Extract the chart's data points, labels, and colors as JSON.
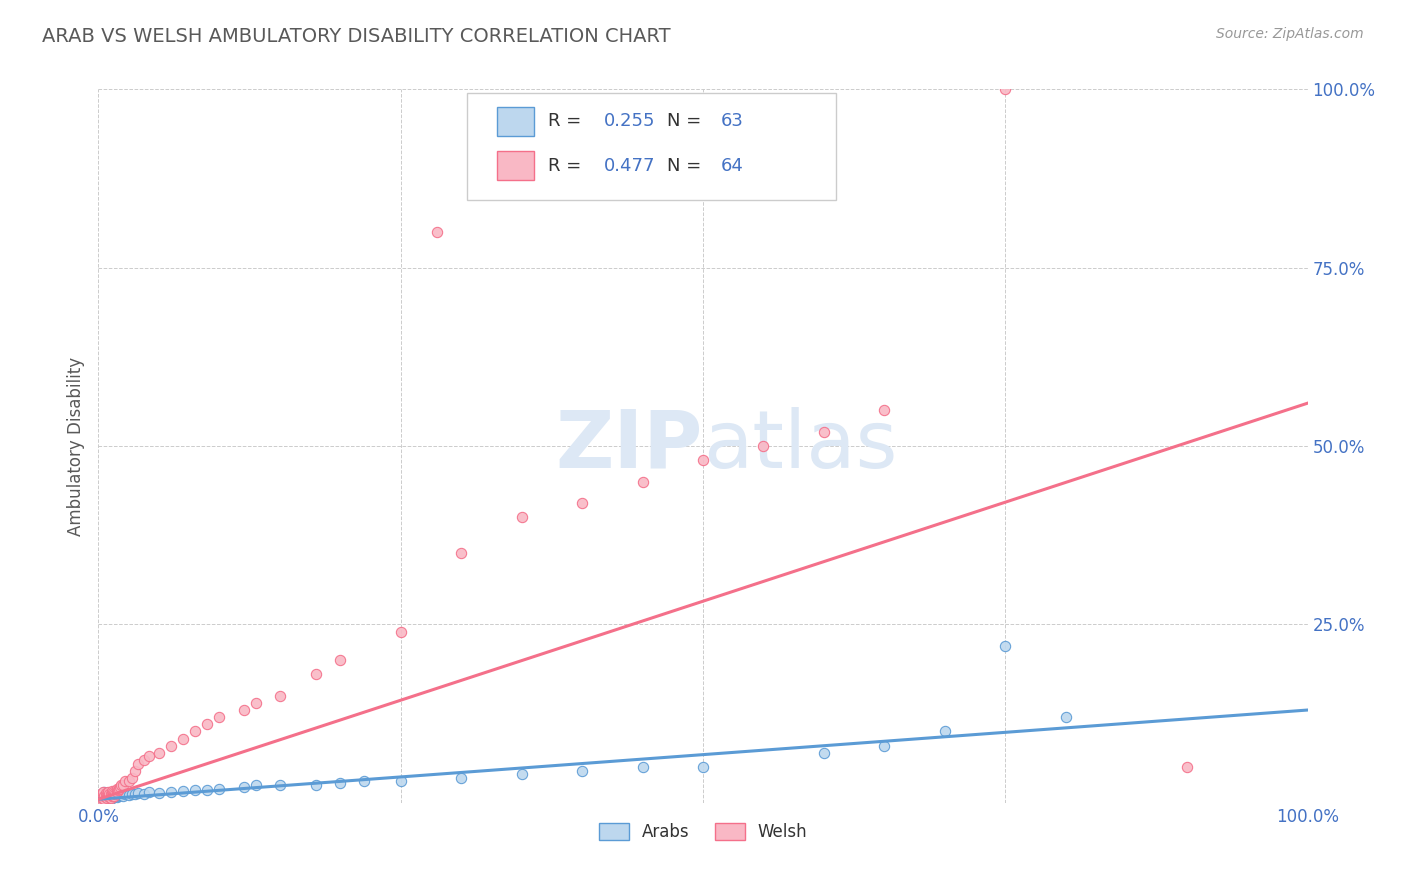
{
  "title": "ARAB VS WELSH AMBULATORY DISABILITY CORRELATION CHART",
  "source": "Source: ZipAtlas.com",
  "ylabel": "Ambulatory Disability",
  "xlim": [
    0.0,
    1.0
  ],
  "ylim": [
    0.0,
    1.0
  ],
  "xtick_vals": [
    0.0,
    0.25,
    0.5,
    0.75,
    1.0
  ],
  "xtick_labels": [
    "0.0%",
    "",
    "",
    "",
    "100.0%"
  ],
  "ytick_vals": [
    0.0,
    0.25,
    0.5,
    0.75,
    1.0
  ],
  "ytick_labels": [
    "",
    "25.0%",
    "50.0%",
    "75.0%",
    "100.0%"
  ],
  "arab_color": "#5b9bd5",
  "arab_color_fill": "#bdd7ee",
  "welsh_color": "#f4708a",
  "welsh_color_fill": "#f9b8c5",
  "arab_R": 0.255,
  "arab_N": 63,
  "welsh_R": 0.477,
  "welsh_N": 64,
  "legend_arab_label": "Arabs",
  "legend_welsh_label": "Welsh",
  "title_color": "#595959",
  "axis_label_color": "#595959",
  "tick_color": "#4472c4",
  "watermark_color": "#dde8f5",
  "background_color": "#ffffff",
  "grid_color": "#cccccc",
  "arab_x": [
    0.001,
    0.001,
    0.002,
    0.002,
    0.003,
    0.003,
    0.004,
    0.004,
    0.005,
    0.005,
    0.005,
    0.006,
    0.006,
    0.007,
    0.007,
    0.008,
    0.008,
    0.009,
    0.009,
    0.01,
    0.01,
    0.011,
    0.011,
    0.012,
    0.012,
    0.013,
    0.014,
    0.015,
    0.015,
    0.016,
    0.017,
    0.018,
    0.02,
    0.022,
    0.025,
    0.028,
    0.03,
    0.033,
    0.038,
    0.042,
    0.05,
    0.06,
    0.07,
    0.08,
    0.09,
    0.1,
    0.12,
    0.13,
    0.15,
    0.18,
    0.2,
    0.22,
    0.25,
    0.3,
    0.35,
    0.4,
    0.45,
    0.5,
    0.6,
    0.65,
    0.7,
    0.75,
    0.8
  ],
  "arab_y": [
    0.005,
    0.01,
    0.008,
    0.012,
    0.006,
    0.01,
    0.008,
    0.012,
    0.005,
    0.009,
    0.015,
    0.007,
    0.011,
    0.006,
    0.012,
    0.008,
    0.013,
    0.007,
    0.01,
    0.006,
    0.012,
    0.009,
    0.014,
    0.008,
    0.011,
    0.01,
    0.012,
    0.008,
    0.015,
    0.01,
    0.011,
    0.013,
    0.01,
    0.012,
    0.011,
    0.013,
    0.012,
    0.014,
    0.013,
    0.015,
    0.014,
    0.015,
    0.016,
    0.018,
    0.018,
    0.02,
    0.022,
    0.025,
    0.025,
    0.025,
    0.028,
    0.03,
    0.03,
    0.035,
    0.04,
    0.045,
    0.05,
    0.05,
    0.07,
    0.08,
    0.1,
    0.22,
    0.12
  ],
  "welsh_x": [
    0.001,
    0.001,
    0.002,
    0.002,
    0.003,
    0.003,
    0.004,
    0.004,
    0.005,
    0.005,
    0.006,
    0.006,
    0.007,
    0.007,
    0.008,
    0.008,
    0.009,
    0.009,
    0.01,
    0.01,
    0.011,
    0.011,
    0.012,
    0.012,
    0.013,
    0.013,
    0.014,
    0.015,
    0.015,
    0.016,
    0.017,
    0.018,
    0.019,
    0.02,
    0.022,
    0.025,
    0.028,
    0.03,
    0.033,
    0.038,
    0.042,
    0.05,
    0.06,
    0.07,
    0.08,
    0.09,
    0.1,
    0.12,
    0.13,
    0.15,
    0.18,
    0.2,
    0.25,
    0.28,
    0.3,
    0.35,
    0.4,
    0.45,
    0.5,
    0.55,
    0.6,
    0.65,
    0.75,
    0.9
  ],
  "welsh_y": [
    0.005,
    0.01,
    0.008,
    0.012,
    0.007,
    0.012,
    0.009,
    0.015,
    0.006,
    0.01,
    0.008,
    0.014,
    0.007,
    0.013,
    0.009,
    0.015,
    0.008,
    0.013,
    0.007,
    0.012,
    0.009,
    0.016,
    0.01,
    0.015,
    0.009,
    0.014,
    0.012,
    0.015,
    0.02,
    0.018,
    0.02,
    0.022,
    0.025,
    0.025,
    0.03,
    0.03,
    0.035,
    0.045,
    0.055,
    0.06,
    0.065,
    0.07,
    0.08,
    0.09,
    0.1,
    0.11,
    0.12,
    0.13,
    0.14,
    0.15,
    0.18,
    0.2,
    0.24,
    0.8,
    0.35,
    0.4,
    0.42,
    0.45,
    0.48,
    0.5,
    0.52,
    0.55,
    1.0,
    0.05
  ],
  "arab_trend_x": [
    0.0,
    1.0
  ],
  "arab_trend_y": [
    0.005,
    0.13
  ],
  "welsh_trend_x": [
    0.0,
    1.0
  ],
  "welsh_trend_y": [
    0.005,
    0.56
  ]
}
